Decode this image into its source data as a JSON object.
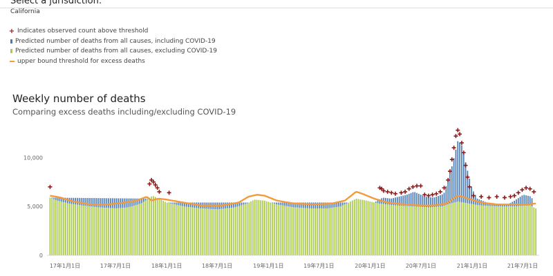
{
  "header": {
    "select_label": "Select a jurisdiction:",
    "jurisdiction_value": "California"
  },
  "legend": {
    "items": [
      {
        "label": "Indicates observed count above threshold",
        "symbol": "plus",
        "color": "#8b1a1a"
      },
      {
        "label": "Predicted number of deaths from all causes, including COVID-19",
        "symbol": "bar",
        "color": "#4a7bb7"
      },
      {
        "label": "Predicted number of deaths from all causes, excluding COVID-19",
        "symbol": "bar",
        "color": "#a9c94a"
      },
      {
        "label": "upper bound threshold for excess deaths",
        "symbol": "line",
        "color": "#f39b3c"
      }
    ]
  },
  "chart_data": {
    "type": "bar",
    "title": "Weekly number of deaths",
    "subtitle": "Comparing excess deaths including/excluding COVID-19",
    "xlabel": "",
    "ylabel": "",
    "ylim": [
      0,
      12000
    ],
    "yticks": [
      {
        "value": 0,
        "label": "0"
      },
      {
        "value": 5000,
        "label": "5,000"
      },
      {
        "value": 10000,
        "label": "10,000"
      }
    ],
    "x_tick_labels": [
      "17年1月1日",
      "17年7月1日",
      "18年1月1日",
      "18年7月1日",
      "19年1月1日",
      "19年7月1日",
      "20年1月1日",
      "20年7月1日",
      "21年1月1日",
      "21年7月1日"
    ],
    "x_start": "2017-01-01",
    "x_end": "2021-10-23",
    "grid": false,
    "series": [
      {
        "name": "Predicted number of deaths from all causes, excluding COVID-19",
        "color": "#a9c94a",
        "points": [
          [
            "2017-01-07",
            5900
          ],
          [
            "2017-02-01",
            5600
          ],
          [
            "2017-03-15",
            5300
          ],
          [
            "2017-05-01",
            5100
          ],
          [
            "2017-07-01",
            4900
          ],
          [
            "2017-09-01",
            4800
          ],
          [
            "2017-10-15",
            4900
          ],
          [
            "2017-12-01",
            5300
          ],
          [
            "2017-12-25",
            5800
          ],
          [
            "2018-01-10",
            6100
          ],
          [
            "2018-02-01",
            5800
          ],
          [
            "2018-03-01",
            5400
          ],
          [
            "2018-05-01",
            5000
          ],
          [
            "2018-07-01",
            4800
          ],
          [
            "2018-09-01",
            4700
          ],
          [
            "2018-11-01",
            4900
          ],
          [
            "2018-12-15",
            5300
          ],
          [
            "2019-01-10",
            5700
          ],
          [
            "2019-02-15",
            5600
          ],
          [
            "2019-04-01",
            5200
          ],
          [
            "2019-06-01",
            4900
          ],
          [
            "2019-08-01",
            4800
          ],
          [
            "2019-10-01",
            4800
          ],
          [
            "2019-11-15",
            5000
          ],
          [
            "2019-12-15",
            5400
          ],
          [
            "2020-01-10",
            5800
          ],
          [
            "2020-02-15",
            5600
          ],
          [
            "2020-04-01",
            5300
          ],
          [
            "2020-06-01",
            5100
          ],
          [
            "2020-08-01",
            5000
          ],
          [
            "2020-10-01",
            4900
          ],
          [
            "2020-11-15",
            5000
          ],
          [
            "2020-12-15",
            5300
          ],
          [
            "2021-01-10",
            5500
          ],
          [
            "2021-02-15",
            5300
          ],
          [
            "2021-04-01",
            5100
          ],
          [
            "2021-06-01",
            5000
          ],
          [
            "2021-08-01",
            5000
          ],
          [
            "2021-09-25",
            5100
          ],
          [
            "2021-10-16",
            4800
          ]
        ]
      },
      {
        "name": "Predicted number of deaths from all causes, including COVID-19",
        "color": "#4a7bb7",
        "points": [
          [
            "2017-01-07",
            5900
          ],
          [
            "2017-12-25",
            5800
          ],
          [
            "2018-01-10",
            6100
          ],
          [
            "2018-03-01",
            5400
          ],
          [
            "2020-03-15",
            5400
          ],
          [
            "2020-04-15",
            5900
          ],
          [
            "2020-05-15",
            5800
          ],
          [
            "2020-07-10",
            6200
          ],
          [
            "2020-08-05",
            6500
          ],
          [
            "2020-09-15",
            6000
          ],
          [
            "2020-10-15",
            5900
          ],
          [
            "2020-11-20",
            6300
          ],
          [
            "2020-12-20",
            9200
          ],
          [
            "2021-01-10",
            11800
          ],
          [
            "2021-01-24",
            11200
          ],
          [
            "2021-02-10",
            9000
          ],
          [
            "2021-03-01",
            6800
          ],
          [
            "2021-03-20",
            5800
          ],
          [
            "2021-05-01",
            5300
          ],
          [
            "2021-07-01",
            5100
          ],
          [
            "2021-08-01",
            5600
          ],
          [
            "2021-09-01",
            6200
          ],
          [
            "2021-10-01",
            6000
          ],
          [
            "2021-10-16",
            3600
          ]
        ]
      },
      {
        "name": "upper bound threshold for excess deaths",
        "color": "#f39b3c",
        "type": "line",
        "points": [
          [
            "2017-01-07",
            6100
          ],
          [
            "2017-02-15",
            5900
          ],
          [
            "2017-04-01",
            5500
          ],
          [
            "2017-06-01",
            5200
          ],
          [
            "2017-08-01",
            5200
          ],
          [
            "2017-10-01",
            5400
          ],
          [
            "2017-11-15",
            5600
          ],
          [
            "2017-12-20",
            6000
          ],
          [
            "2018-01-05",
            5600
          ],
          [
            "2018-02-01",
            5800
          ],
          [
            "2018-03-01",
            5700
          ],
          [
            "2018-05-01",
            5400
          ],
          [
            "2018-07-01",
            5100
          ],
          [
            "2018-09-15",
            5100
          ],
          [
            "2018-11-15",
            5400
          ],
          [
            "2018-12-20",
            6000
          ],
          [
            "2019-01-20",
            6200
          ],
          [
            "2019-02-15",
            6100
          ],
          [
            "2019-04-01",
            5600
          ],
          [
            "2019-06-01",
            5300
          ],
          [
            "2019-08-15",
            5200
          ],
          [
            "2019-10-15",
            5300
          ],
          [
            "2019-12-01",
            5600
          ],
          [
            "2020-01-10",
            6500
          ],
          [
            "2020-02-01",
            6300
          ],
          [
            "2020-03-15",
            5800
          ],
          [
            "2020-05-01",
            5400
          ],
          [
            "2020-07-01",
            5200
          ],
          [
            "2020-09-01",
            5100
          ],
          [
            "2020-10-15",
            5100
          ],
          [
            "2020-12-01",
            5300
          ],
          [
            "2020-12-28",
            5900
          ],
          [
            "2021-01-15",
            6100
          ],
          [
            "2021-02-15",
            5800
          ],
          [
            "2021-04-01",
            5400
          ],
          [
            "2021-06-01",
            5200
          ],
          [
            "2021-08-01",
            5200
          ],
          [
            "2021-09-15",
            5200
          ],
          [
            "2021-10-16",
            5300
          ]
        ]
      },
      {
        "name": "Indicates observed count above threshold",
        "color": "#8b1a1a",
        "type": "scatter",
        "points": [
          [
            "2017-01-07",
            7000
          ],
          [
            "2017-12-30",
            7300
          ],
          [
            "2018-01-06",
            7700
          ],
          [
            "2018-01-13",
            7500
          ],
          [
            "2018-01-20",
            7200
          ],
          [
            "2018-01-27",
            6900
          ],
          [
            "2018-02-03",
            6500
          ],
          [
            "2018-03-10",
            6400
          ],
          [
            "2020-04-04",
            6900
          ],
          [
            "2020-04-11",
            6800
          ],
          [
            "2020-04-18",
            6600
          ],
          [
            "2020-05-02",
            6500
          ],
          [
            "2020-05-16",
            6400
          ],
          [
            "2020-05-30",
            6300
          ],
          [
            "2020-06-20",
            6400
          ],
          [
            "2020-07-04",
            6500
          ],
          [
            "2020-07-18",
            6800
          ],
          [
            "2020-08-01",
            7000
          ],
          [
            "2020-08-15",
            7100
          ],
          [
            "2020-08-29",
            7100
          ],
          [
            "2020-09-12",
            6200
          ],
          [
            "2020-09-26",
            6100
          ],
          [
            "2020-10-10",
            6200
          ],
          [
            "2020-10-24",
            6300
          ],
          [
            "2020-11-07",
            6500
          ],
          [
            "2020-11-21",
            6900
          ],
          [
            "2020-12-05",
            7700
          ],
          [
            "2020-12-12",
            8600
          ],
          [
            "2020-12-19",
            9800
          ],
          [
            "2020-12-26",
            11000
          ],
          [
            "2021-01-02",
            12200
          ],
          [
            "2021-01-09",
            12800
          ],
          [
            "2021-01-16",
            12400
          ],
          [
            "2021-01-23",
            11500
          ],
          [
            "2021-01-30",
            10500
          ],
          [
            "2021-02-06",
            9200
          ],
          [
            "2021-02-13",
            8000
          ],
          [
            "2021-02-20",
            7000
          ],
          [
            "2021-03-06",
            6100
          ],
          [
            "2021-04-03",
            6000
          ],
          [
            "2021-05-01",
            5900
          ],
          [
            "2021-05-29",
            6000
          ],
          [
            "2021-06-26",
            5900
          ],
          [
            "2021-07-17",
            6000
          ],
          [
            "2021-07-31",
            6100
          ],
          [
            "2021-08-14",
            6400
          ],
          [
            "2021-08-28",
            6700
          ],
          [
            "2021-09-11",
            6900
          ],
          [
            "2021-09-25",
            6800
          ],
          [
            "2021-10-09",
            6500
          ]
        ]
      }
    ]
  }
}
